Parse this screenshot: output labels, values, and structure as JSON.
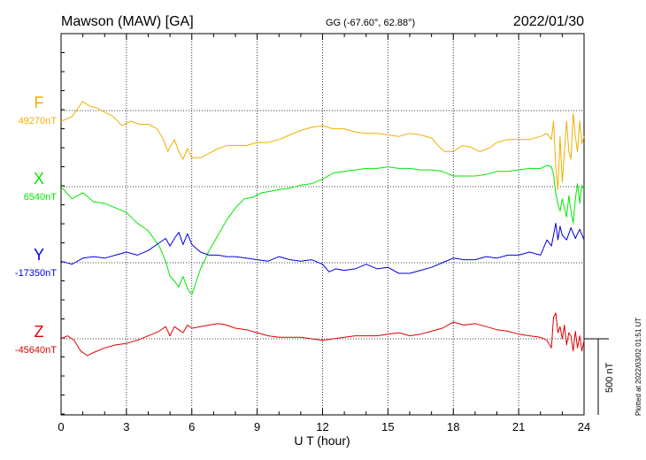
{
  "header": {
    "station": "Mawson (MAW)  [GA]",
    "coords": "GG (-67.60°,  62.88°)",
    "date": "2022/01/30"
  },
  "side_note": "Plotted at 2022/03/02 01:51  UT",
  "chart_data": {
    "type": "line",
    "xlabel": "U T (hour)",
    "xlim": [
      0,
      24
    ],
    "xticks": [
      0,
      3,
      6,
      9,
      12,
      15,
      18,
      21,
      24
    ],
    "scale_bar": {
      "label": "500 nT",
      "value": 500
    },
    "series": [
      {
        "name": "F",
        "baseline_label": "49270nT",
        "baseline": 49270,
        "color": "#f0b000",
        "x": [
          0,
          0.5,
          1,
          1.3,
          1.6,
          2,
          2.4,
          2.8,
          3.2,
          3.6,
          4,
          4.4,
          4.7,
          4.9,
          5.0,
          5.2,
          5.4,
          5.6,
          5.8,
          6,
          6.4,
          6.8,
          7.2,
          7.6,
          8,
          8.5,
          9,
          9.5,
          10,
          10.5,
          11,
          11.5,
          12,
          12.5,
          13,
          13.5,
          14,
          14.5,
          15,
          15.5,
          16,
          16.5,
          17,
          17.3,
          17.6,
          18,
          18.4,
          18.8,
          19.2,
          19.6,
          20,
          20.5,
          21,
          21.5,
          22,
          22.3,
          22.5,
          22.6,
          22.7,
          22.8,
          22.9,
          23.0,
          23.1,
          23.2,
          23.3,
          23.4,
          23.5,
          23.6,
          23.7,
          23.8,
          23.9,
          24
        ],
        "y": [
          49200,
          49230,
          49330,
          49300,
          49290,
          49260,
          49230,
          49170,
          49200,
          49180,
          49180,
          49150,
          49080,
          49000,
          49030,
          49080,
          49000,
          48950,
          49020,
          48960,
          48960,
          48990,
          49020,
          49040,
          49040,
          49040,
          49060,
          49060,
          49080,
          49110,
          49140,
          49160,
          49170,
          49150,
          49150,
          49130,
          49120,
          49120,
          49110,
          49100,
          49120,
          49110,
          49090,
          49040,
          49000,
          49000,
          49040,
          49030,
          49000,
          49020,
          49060,
          49080,
          49080,
          49080,
          49100,
          49120,
          49080,
          49200,
          48900,
          48750,
          49100,
          48800,
          49000,
          49200,
          49000,
          48950,
          49250,
          49100,
          49000,
          49200,
          49050,
          49100
        ]
      },
      {
        "name": "X",
        "baseline_label": "6540nT",
        "baseline": 6540,
        "color": "#00e800",
        "x": [
          0,
          0.5,
          1,
          1.5,
          2,
          2.5,
          3,
          3.5,
          4,
          4.5,
          4.8,
          5.0,
          5.2,
          5.4,
          5.6,
          5.8,
          6,
          6.4,
          6.8,
          7.2,
          7.6,
          8,
          8.4,
          8.8,
          9.2,
          9.6,
          10,
          10.5,
          11,
          11.5,
          12,
          12.5,
          13,
          13.5,
          14,
          14.5,
          15,
          15.5,
          16,
          16.5,
          17,
          17.5,
          18,
          18.5,
          19,
          19.5,
          20,
          20.5,
          21,
          21.5,
          22,
          22.3,
          22.5,
          22.6,
          22.7,
          22.8,
          22.9,
          23.0,
          23.1,
          23.2,
          23.3,
          23.4,
          23.5,
          23.6,
          23.7,
          23.8,
          23.9,
          24
        ],
        "y": [
          6540,
          6460,
          6500,
          6440,
          6430,
          6400,
          6370,
          6300,
          6250,
          6150,
          6050,
          5950,
          5920,
          5880,
          5950,
          5870,
          5830,
          6000,
          6120,
          6220,
          6320,
          6400,
          6460,
          6470,
          6500,
          6510,
          6520,
          6530,
          6550,
          6560,
          6590,
          6630,
          6640,
          6650,
          6660,
          6660,
          6670,
          6660,
          6660,
          6650,
          6650,
          6640,
          6610,
          6610,
          6610,
          6620,
          6640,
          6640,
          6650,
          6660,
          6660,
          6680,
          6670,
          6620,
          6500,
          6420,
          6380,
          6460,
          6400,
          6340,
          6480,
          6380,
          6300,
          6460,
          6560,
          6430,
          6550,
          6520
        ]
      },
      {
        "name": "Y",
        "baseline_label": "-17350nT",
        "baseline": -17350,
        "color": "#0000e0",
        "x": [
          0,
          0.5,
          1,
          1.5,
          2,
          2.5,
          3,
          3.5,
          4,
          4.5,
          4.8,
          5.0,
          5.2,
          5.4,
          5.6,
          5.8,
          6,
          6.4,
          6.8,
          7.2,
          7.6,
          8,
          8.5,
          9,
          9.5,
          10,
          10.5,
          11,
          11.5,
          12,
          12.3,
          12.6,
          13,
          13.5,
          14,
          14.5,
          15,
          15.5,
          16,
          16.5,
          17,
          17.5,
          18,
          18.5,
          19,
          19.5,
          20,
          20.5,
          21,
          21.5,
          22,
          22.3,
          22.5,
          22.6,
          22.7,
          22.8,
          22.9,
          23.0,
          23.2,
          23.4,
          23.6,
          23.8,
          24
        ],
        "y": [
          -17340,
          -17360,
          -17320,
          -17310,
          -17320,
          -17300,
          -17280,
          -17300,
          -17270,
          -17220,
          -17190,
          -17240,
          -17190,
          -17150,
          -17230,
          -17160,
          -17230,
          -17280,
          -17300,
          -17300,
          -17310,
          -17310,
          -17320,
          -17330,
          -17340,
          -17310,
          -17330,
          -17340,
          -17330,
          -17360,
          -17410,
          -17390,
          -17400,
          -17390,
          -17360,
          -17390,
          -17380,
          -17420,
          -17420,
          -17400,
          -17380,
          -17350,
          -17320,
          -17330,
          -17330,
          -17310,
          -17320,
          -17300,
          -17300,
          -17280,
          -17300,
          -17200,
          -17240,
          -17170,
          -17090,
          -17200,
          -17110,
          -17170,
          -17200,
          -17120,
          -17190,
          -17130,
          -17200
        ]
      },
      {
        "name": "Z",
        "baseline_label": "-45640nT",
        "baseline": -45640,
        "color": "#e00000",
        "x": [
          0,
          0.3,
          0.6,
          0.9,
          1.2,
          1.5,
          2,
          2.5,
          3,
          3.5,
          4,
          4.5,
          4.8,
          5.0,
          5.2,
          5.4,
          5.6,
          5.8,
          6,
          6.4,
          6.8,
          7.2,
          7.6,
          8,
          8.5,
          9,
          9.5,
          10,
          10.5,
          11,
          11.5,
          12,
          12.5,
          13,
          13.5,
          14,
          14.5,
          15,
          15.5,
          16,
          16.5,
          17,
          17.5,
          18,
          18.5,
          19,
          19.5,
          20,
          20.5,
          21,
          21.5,
          22,
          22.3,
          22.5,
          22.6,
          22.7,
          22.8,
          22.9,
          23.0,
          23.1,
          23.2,
          23.3,
          23.4,
          23.5,
          23.6,
          23.7,
          23.8,
          23.9,
          24
        ],
        "y": [
          -45640,
          -45620,
          -45650,
          -45720,
          -45750,
          -45730,
          -45700,
          -45680,
          -45670,
          -45650,
          -45620,
          -45590,
          -45560,
          -45620,
          -45560,
          -45580,
          -45600,
          -45550,
          -45570,
          -45560,
          -45550,
          -45540,
          -45550,
          -45570,
          -45580,
          -45600,
          -45620,
          -45630,
          -45630,
          -45630,
          -45640,
          -45650,
          -45640,
          -45630,
          -45620,
          -45620,
          -45620,
          -45610,
          -45600,
          -45620,
          -45610,
          -45590,
          -45570,
          -45530,
          -45550,
          -45540,
          -45560,
          -45580,
          -45590,
          -45610,
          -45620,
          -45630,
          -45650,
          -45700,
          -45500,
          -45470,
          -45600,
          -45560,
          -45640,
          -45550,
          -45680,
          -45600,
          -45620,
          -45720,
          -45590,
          -45700,
          -45620,
          -45720,
          -45650
        ]
      }
    ]
  }
}
